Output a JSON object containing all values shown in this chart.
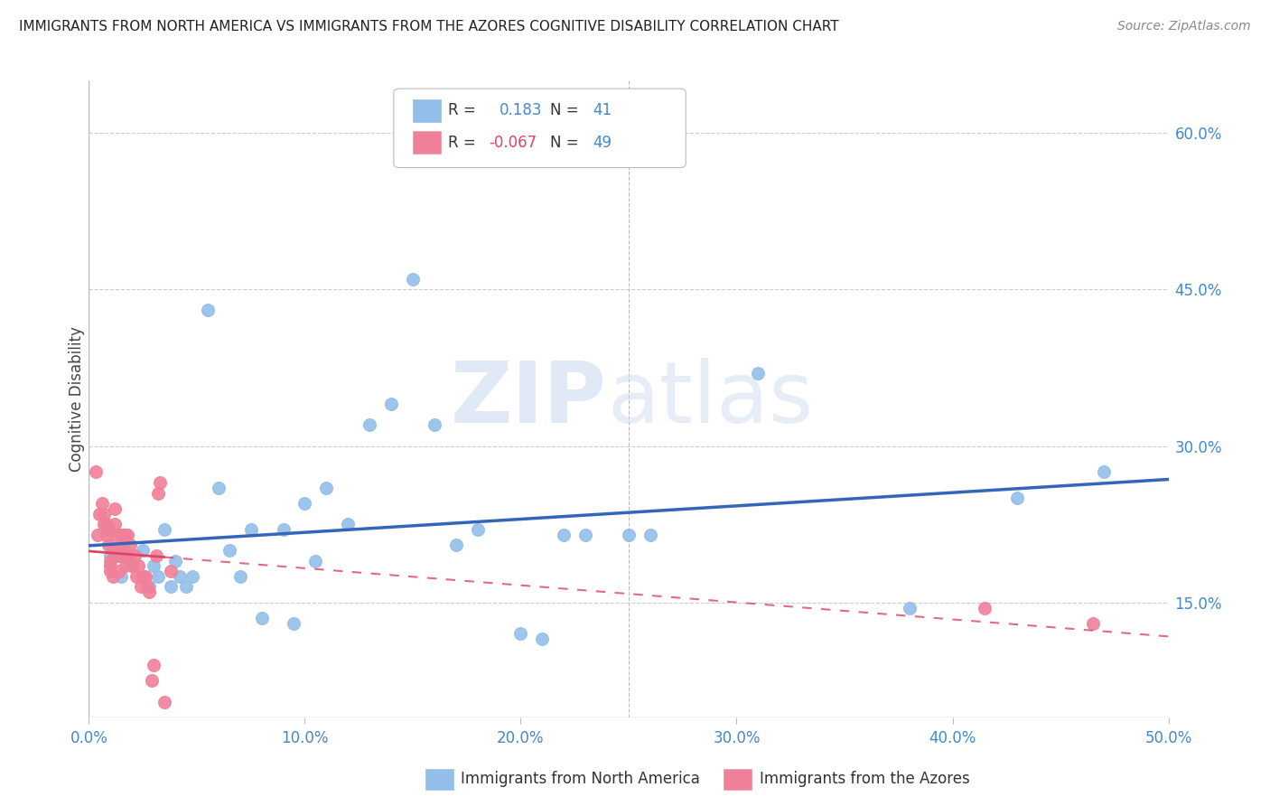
{
  "title": "IMMIGRANTS FROM NORTH AMERICA VS IMMIGRANTS FROM THE AZORES COGNITIVE DISABILITY CORRELATION CHART",
  "source": "Source: ZipAtlas.com",
  "xlabel_blue": "Immigrants from North America",
  "xlabel_pink": "Immigrants from the Azores",
  "ylabel": "Cognitive Disability",
  "r_blue": 0.183,
  "n_blue": 41,
  "r_pink": -0.067,
  "n_pink": 49,
  "xlim": [
    0.0,
    0.5
  ],
  "ylim": [
    0.04,
    0.65
  ],
  "xticks": [
    0.0,
    0.1,
    0.2,
    0.3,
    0.4,
    0.5
  ],
  "yticks": [
    0.15,
    0.3,
    0.45,
    0.6
  ],
  "ytick_labels": [
    "15.0%",
    "30.0%",
    "45.0%",
    "60.0%"
  ],
  "xtick_labels": [
    "0.0%",
    "10.0%",
    "20.0%",
    "30.0%",
    "40.0%",
    "50.0%"
  ],
  "blue_color": "#92BEE8",
  "pink_color": "#F08099",
  "trend_blue": "#3366BB",
  "trend_pink": "#DD4466",
  "watermark_zip": "ZIP",
  "watermark_atlas": "atlas",
  "blue_scatter_x": [
    0.01,
    0.015,
    0.02,
    0.025,
    0.028,
    0.03,
    0.032,
    0.035,
    0.038,
    0.04,
    0.042,
    0.045,
    0.048,
    0.055,
    0.06,
    0.065,
    0.07,
    0.075,
    0.08,
    0.09,
    0.095,
    0.1,
    0.105,
    0.11,
    0.12,
    0.13,
    0.14,
    0.15,
    0.16,
    0.17,
    0.18,
    0.2,
    0.21,
    0.22,
    0.23,
    0.25,
    0.26,
    0.31,
    0.38,
    0.43,
    0.47
  ],
  "blue_scatter_y": [
    0.195,
    0.175,
    0.185,
    0.2,
    0.165,
    0.185,
    0.175,
    0.22,
    0.165,
    0.19,
    0.175,
    0.165,
    0.175,
    0.43,
    0.26,
    0.2,
    0.175,
    0.22,
    0.135,
    0.22,
    0.13,
    0.245,
    0.19,
    0.26,
    0.225,
    0.32,
    0.34,
    0.46,
    0.32,
    0.205,
    0.22,
    0.12,
    0.115,
    0.215,
    0.215,
    0.215,
    0.215,
    0.37,
    0.145,
    0.25,
    0.275
  ],
  "pink_scatter_x": [
    0.003,
    0.004,
    0.005,
    0.006,
    0.007,
    0.007,
    0.008,
    0.008,
    0.009,
    0.009,
    0.01,
    0.01,
    0.01,
    0.011,
    0.011,
    0.012,
    0.012,
    0.013,
    0.013,
    0.014,
    0.014,
    0.015,
    0.015,
    0.016,
    0.016,
    0.017,
    0.017,
    0.018,
    0.018,
    0.019,
    0.019,
    0.02,
    0.021,
    0.022,
    0.023,
    0.024,
    0.025,
    0.026,
    0.027,
    0.028,
    0.029,
    0.03,
    0.031,
    0.032,
    0.033,
    0.035,
    0.038,
    0.415,
    0.465
  ],
  "pink_scatter_y": [
    0.275,
    0.215,
    0.235,
    0.245,
    0.235,
    0.225,
    0.225,
    0.215,
    0.22,
    0.205,
    0.19,
    0.185,
    0.18,
    0.2,
    0.175,
    0.24,
    0.225,
    0.215,
    0.195,
    0.195,
    0.18,
    0.215,
    0.205,
    0.215,
    0.2,
    0.215,
    0.185,
    0.215,
    0.195,
    0.205,
    0.19,
    0.185,
    0.195,
    0.175,
    0.185,
    0.165,
    0.175,
    0.175,
    0.165,
    0.16,
    0.075,
    0.09,
    0.195,
    0.255,
    0.265,
    0.055,
    0.18,
    0.145,
    0.13
  ]
}
